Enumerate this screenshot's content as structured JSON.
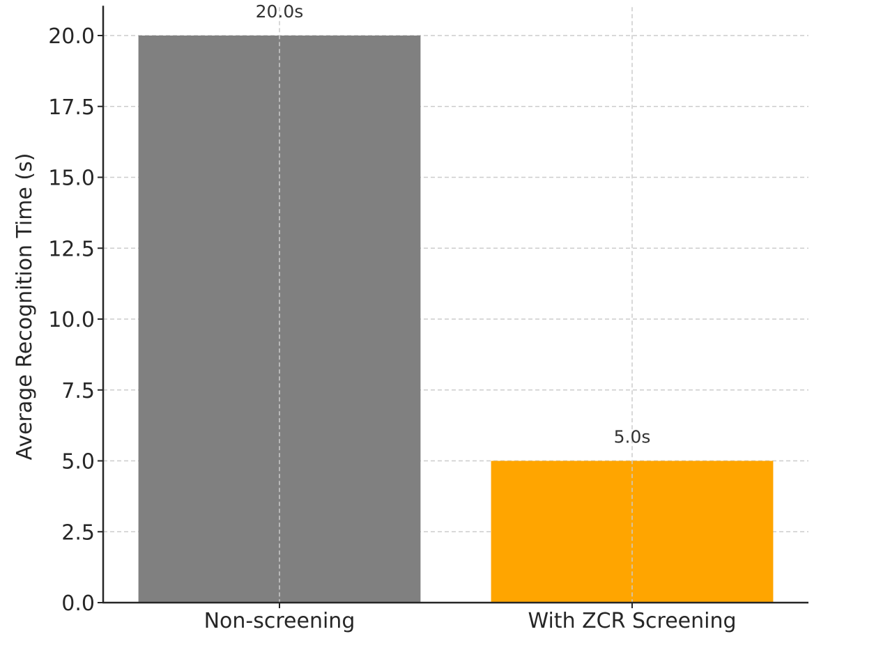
{
  "chart_data": {
    "type": "bar",
    "title": "",
    "xlabel": "",
    "ylabel": "Average Recognition Time (s)",
    "categories": [
      "Non-screening",
      "With ZCR Screening"
    ],
    "values": [
      20.0,
      5.0
    ],
    "data_labels": [
      "20.0s",
      "5.0s"
    ],
    "bar_colors": [
      "#808080",
      "#ffa500"
    ],
    "ylim": [
      0,
      21
    ],
    "yticks": [
      0.0,
      2.5,
      5.0,
      7.5,
      10.0,
      12.5,
      15.0,
      17.5,
      20.0
    ],
    "ytick_labels": [
      "0.0",
      "2.5",
      "5.0",
      "7.5",
      "10.0",
      "12.5",
      "15.0",
      "17.5",
      "20.0"
    ],
    "grid": true,
    "grid_color": "#cccccc",
    "axis_color": "#262626",
    "text_color": "#262626"
  }
}
